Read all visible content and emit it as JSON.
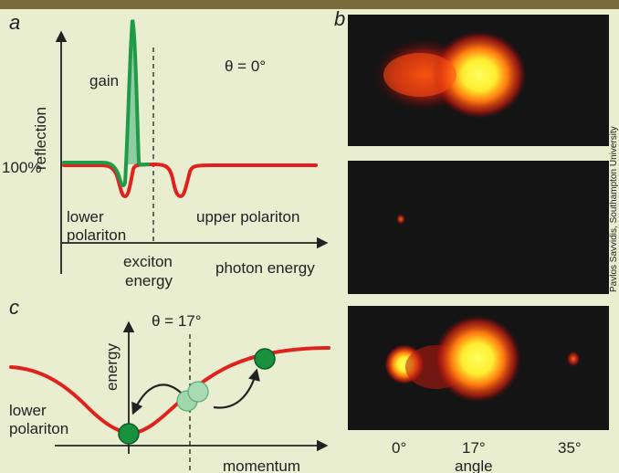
{
  "panel_a": {
    "letter": "a",
    "y_axis_label": "reflection",
    "gain_label": "gain",
    "theta_label": "θ = 0°",
    "level_label": "100%",
    "lower_polariton_line1": "lower",
    "lower_polariton_line2": "polariton",
    "upper_polariton_label": "upper polariton",
    "exciton_line1": "exciton",
    "exciton_line2": "energy",
    "x_axis_label": "photon energy"
  },
  "panel_b": {
    "letter": "b",
    "angle_ticks": [
      "0°",
      "17°",
      "35°"
    ],
    "x_axis_label": "angle"
  },
  "panel_c": {
    "letter": "c",
    "theta_label": "θ = 17°",
    "y_axis_label": "energy",
    "lower_polariton_line1": "lower",
    "lower_polariton_line2": "polariton",
    "x_axis_label": "momentum"
  },
  "credit": "Pavlos Savvidis, Southampton University",
  "colors": {
    "background": "#e8eecf",
    "top_bar": "#7a6b3a",
    "reflection_curve": "#e0211e",
    "gain_curve": "#1f9a48",
    "gain_fill": "#7cc79a",
    "polariton_ball": "#18913f",
    "scattering_ball": "#9fd8ac",
    "image_background": "#141414"
  }
}
